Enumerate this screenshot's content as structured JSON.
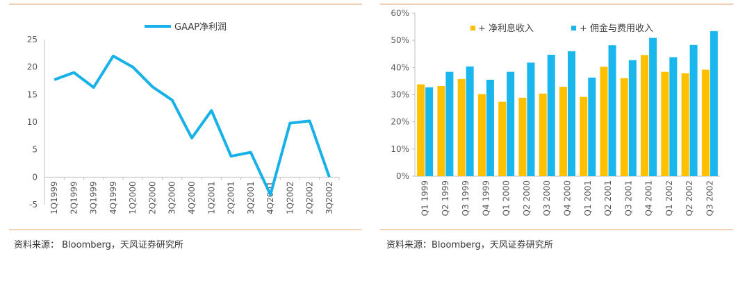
{
  "colors": {
    "accent_rule": "#E8A16B",
    "line_series": "#16B1E8",
    "bar_net_interest": "#FFC000",
    "bar_fee": "#19B7EE",
    "axis": "#BFBFBF"
  },
  "left": {
    "source": "资料来源：  Bloomberg，天风证券研究所",
    "chart_data": {
      "type": "line",
      "categories": [
        "1Q1999",
        "2Q1999",
        "3Q1999",
        "4Q1999",
        "1Q2000",
        "2Q2000",
        "3Q2000",
        "4Q2000",
        "1Q2001",
        "2Q2001",
        "3Q2001",
        "4Q2001",
        "1Q2002",
        "2Q2002",
        "3Q2002"
      ],
      "series": [
        {
          "name": "GAAP净利润",
          "values": [
            17.7,
            19.0,
            16.3,
            22.0,
            20.0,
            16.4,
            14.0,
            7.1,
            12.1,
            3.8,
            4.5,
            -3.2,
            9.8,
            10.2,
            0
          ]
        }
      ],
      "ylim": [
        -5,
        25
      ],
      "yticks": [
        "-5",
        "0",
        "5",
        "10",
        "15",
        "20",
        "25"
      ],
      "legend": "top-center",
      "xlabel": "",
      "ylabel": "",
      "title": ""
    }
  },
  "right": {
    "source": "资料来源：Bloomberg，天风证券研究所",
    "chart_data": {
      "type": "bar",
      "categories": [
        "Q1 1999",
        "Q2 1999",
        "Q3 1999",
        "Q4 1999",
        "Q1 2000",
        "Q2 2000",
        "Q3 2000",
        "Q4 2000",
        "Q1 2001",
        "Q2 2001",
        "Q3 2001",
        "Q4 2001",
        "Q1 2002",
        "Q2 2002",
        "Q3 2002"
      ],
      "series": [
        {
          "name": "+ 净利息收入",
          "values": [
            33.8,
            33.2,
            35.8,
            30.2,
            27.4,
            28.9,
            30.4,
            32.9,
            29.2,
            40.3,
            36.1,
            44.6,
            38.4,
            37.9,
            39.2
          ]
        },
        {
          "name": "+ 佣金与费用收入",
          "values": [
            32.7,
            38.4,
            40.4,
            35.5,
            38.4,
            41.8,
            44.7,
            46.0,
            36.3,
            48.2,
            42.7,
            50.9,
            43.8,
            48.3,
            53.4
          ]
        }
      ],
      "ylim": [
        0,
        60
      ],
      "yticks": [
        "0%",
        "10%",
        "20%",
        "30%",
        "40%",
        "50%",
        "60%"
      ],
      "legend": "top",
      "xlabel": "",
      "ylabel": "",
      "title": ""
    }
  }
}
